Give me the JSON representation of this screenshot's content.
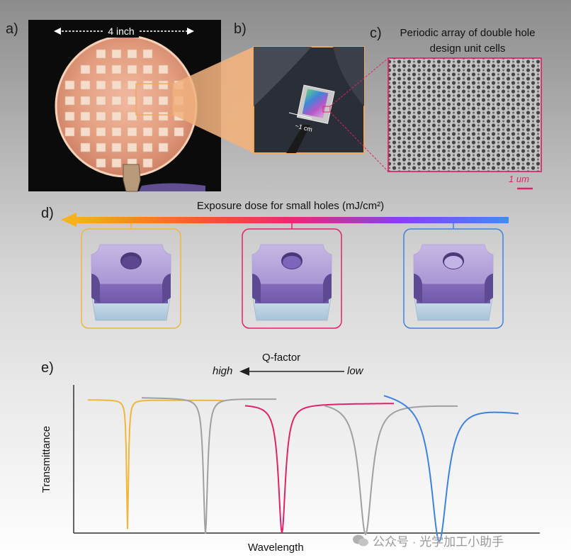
{
  "panels": {
    "a": {
      "label": "a)",
      "dimension_text": "4 inch"
    },
    "b": {
      "label": "b)",
      "dimension_text": "~1 cm"
    },
    "c": {
      "label": "c)",
      "title_line1": "Periodic array of double hole",
      "title_line2": "design unit cells",
      "scale_text": "1 um"
    },
    "d": {
      "label": "d)",
      "title": "Exposure dose for small holes (mJ/cm²)"
    },
    "e": {
      "label": "e)",
      "qfactor_label": "Q-factor",
      "high_label": "high",
      "low_label": "low",
      "ylabel": "Transmittance",
      "xlabel": "Wavelength"
    }
  },
  "unit_cells": [
    {
      "frame_color": "#f0b73a",
      "hole_depth": "shallow"
    },
    {
      "frame_color": "#e0226b",
      "hole_depth": "medium"
    },
    {
      "frame_color": "#3e82e0",
      "hole_depth": "deep"
    }
  ],
  "colors": {
    "yellow": "#f0b73a",
    "magenta": "#e0226b",
    "blue": "#3e82e0",
    "gray": "#a0a0a0"
  },
  "watermark": "公众号 · 光学加工小助手"
}
